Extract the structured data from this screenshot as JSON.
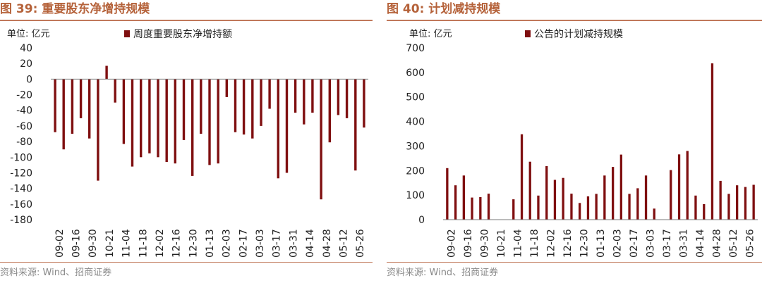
{
  "panels": [
    {
      "title": "图 39:  重要股东净增持规模",
      "unit": "单位:  亿元",
      "source": "资料来源:  Wind、招商证券"
    },
    {
      "title": "图 40:  计划减持规模",
      "unit": "单位:  亿元",
      "source": "资料来源:  Wind、招商证券"
    }
  ],
  "colors": {
    "bar": "#7f0f10",
    "title": "#b5623a",
    "grid": "#d9d9d9"
  },
  "chart_data": [
    {
      "type": "bar",
      "series": [
        {
          "name": "周度重要股东净增持额",
          "values": [
            -68,
            -90,
            -70,
            -50,
            -76,
            -130,
            17,
            -30,
            -83,
            -112,
            -100,
            -95,
            -100,
            -106,
            -108,
            -78,
            -124,
            -70,
            -110,
            -108,
            -23,
            -68,
            -71,
            -76,
            -60,
            -38,
            -127,
            -120,
            -43,
            -58,
            -43,
            -154,
            -81,
            -46,
            -50,
            -117,
            -62
          ]
        }
      ],
      "tick_labels": [
        "09-02",
        "09-16",
        "09-30",
        "10-21",
        "11-04",
        "11-18",
        "12-02",
        "12-16",
        "12-30",
        "01-13",
        "02-03",
        "02-17",
        "03-03",
        "03-17",
        "03-31",
        "04-14",
        "04-28",
        "05-12",
        "05-26"
      ],
      "ylim": [
        -180,
        40
      ],
      "yticks": [
        40,
        20,
        0,
        -20,
        -40,
        -60,
        -80,
        -100,
        -120,
        -140,
        -160,
        -180
      ],
      "grid": false,
      "legend": "top"
    },
    {
      "type": "bar",
      "series": [
        {
          "name": "公告的计划减持规模",
          "values": [
            210,
            140,
            180,
            90,
            92,
            106,
            0,
            0,
            83,
            348,
            236,
            98,
            218,
            162,
            170,
            106,
            68,
            95,
            105,
            180,
            215,
            265,
            105,
            128,
            180,
            45,
            0,
            202,
            266,
            280,
            98,
            63,
            637,
            158,
            105,
            140,
            133,
            142
          ]
        }
      ],
      "tick_labels": [
        "09-02",
        "09-16",
        "09-30",
        "10-21",
        "11-04",
        "11-18",
        "12-02",
        "12-16",
        "12-30",
        "01-13",
        "02-03",
        "02-17",
        "03-03",
        "03-17",
        "03-31",
        "04-14",
        "04-28",
        "05-12",
        "05-26"
      ],
      "ylim": [
        0,
        700
      ],
      "yticks": [
        700,
        600,
        500,
        400,
        300,
        200,
        100,
        0
      ],
      "grid": false,
      "legend": "top"
    }
  ]
}
